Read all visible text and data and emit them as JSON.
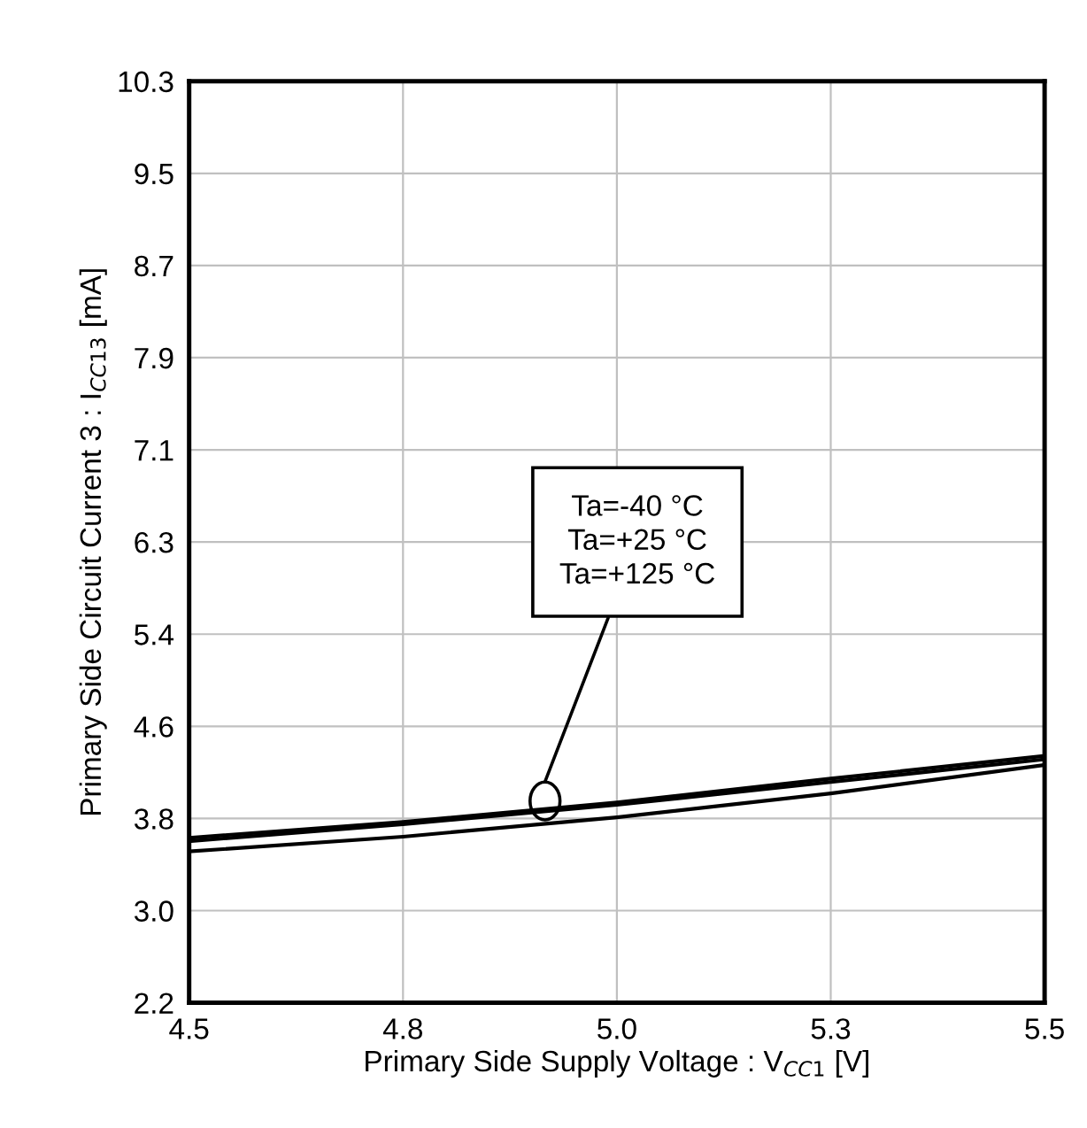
{
  "chart_data": {
    "type": "line",
    "xlabel": "Primary Side Supply Voltage : V$_{CC1}$ [V]",
    "ylabel": "Primary Side Circuit Current 3 : I$_{CC13}$ [mA]",
    "x": [
      4.5,
      4.75,
      5.0,
      5.25,
      5.5
    ],
    "series": [
      {
        "color": "#000000",
        "values": [
          3.65,
          3.79,
          3.96,
          4.17,
          4.37
        ]
      },
      {
        "color": "#000000",
        "values": [
          3.62,
          3.77,
          3.94,
          4.14,
          4.34
        ]
      },
      {
        "color": "#000000",
        "values": [
          3.53,
          3.66,
          3.83,
          4.04,
          4.29
        ]
      }
    ],
    "xlim": [
      4.5,
      5.5
    ],
    "xticks": [
      4.5,
      {
        "value": 4.75,
        "label": "4.8"
      },
      {
        "value": 5.0,
        "label": "5.0"
      },
      {
        "value": 5.25,
        "label": "5.3"
      },
      5.5
    ],
    "ylim": [
      2.2,
      10.3
    ],
    "yticks": [
      2.2,
      {
        "value": 3.01,
        "label": "3.0"
      },
      {
        "value": 3.82,
        "label": "3.8"
      },
      {
        "value": 4.63,
        "label": "4.6"
      },
      {
        "value": 5.44,
        "label": "5.4"
      },
      {
        "value": 6.25,
        "label": "6.3"
      },
      {
        "value": 7.06,
        "label": "7.1"
      },
      {
        "value": 7.87,
        "label": "7.9"
      },
      {
        "value": 8.68,
        "label": "8.7"
      },
      {
        "value": 9.49,
        "label": "9.5"
      },
      10.3
    ],
    "grid": true,
    "marker": "none",
    "line_style": "solid",
    "annotations": [
      "Ta=-40 °C\nTa=+25 °C\nTa=+125 °C"
    ]
  }
}
